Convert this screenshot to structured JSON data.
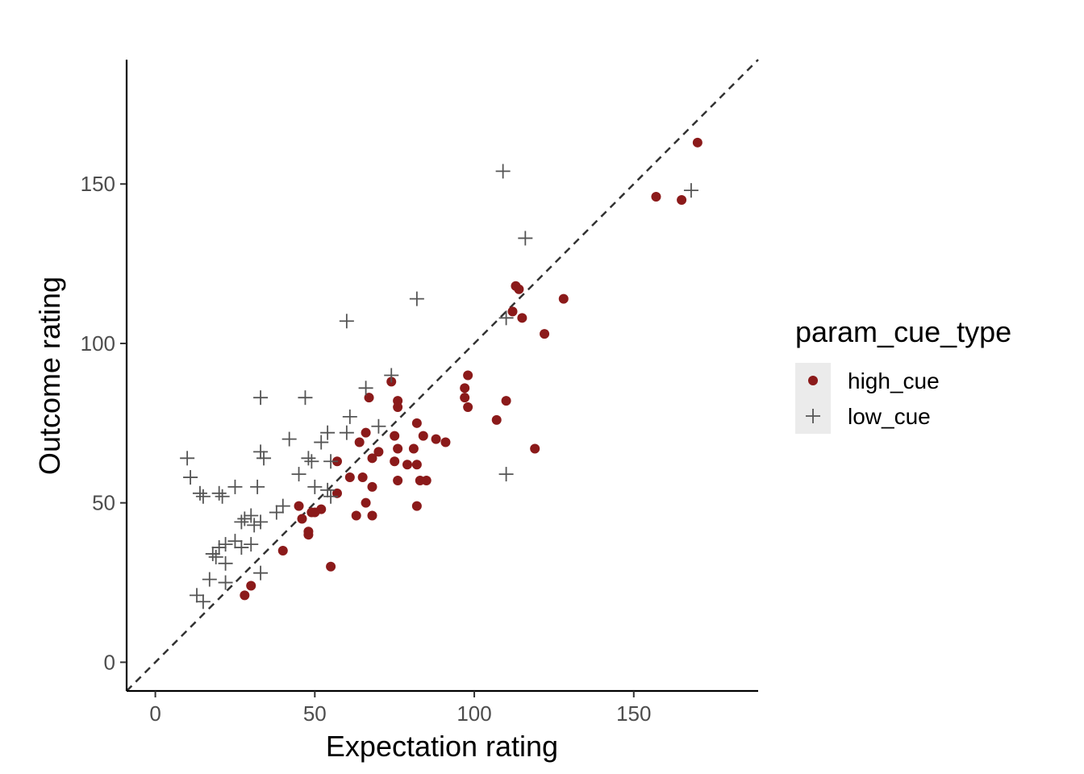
{
  "chart_data": {
    "type": "scatter",
    "title": "",
    "xlabel": "Expectation rating",
    "ylabel": "Outcome rating",
    "xlim": [
      -9,
      189
    ],
    "ylim": [
      -9,
      189
    ],
    "x_ticks": [
      0,
      50,
      100,
      150
    ],
    "y_ticks": [
      0,
      50,
      100,
      150
    ],
    "x_tick_labels": [
      "0",
      "50",
      "100",
      "150"
    ],
    "y_tick_labels": [
      "0",
      "50",
      "100",
      "150"
    ],
    "grid": false,
    "reference_line": {
      "type": "identity",
      "style": "dashed",
      "color": "#333333"
    },
    "legend": {
      "title": "param_cue_type",
      "position": "right",
      "entries": [
        {
          "label": "high_cue",
          "shape": "circle",
          "color": "#8b1a1a"
        },
        {
          "label": "low_cue",
          "shape": "plus",
          "color": "#555555"
        }
      ]
    },
    "series": [
      {
        "name": "high_cue",
        "shape": "circle",
        "color": "#8b1a1a",
        "points": [
          [
            170,
            163
          ],
          [
            157,
            146
          ],
          [
            165,
            145
          ],
          [
            128,
            114
          ],
          [
            113,
            118
          ],
          [
            114,
            117
          ],
          [
            112,
            110
          ],
          [
            115,
            108
          ],
          [
            122,
            103
          ],
          [
            98,
            90
          ],
          [
            97,
            86
          ],
          [
            97,
            83
          ],
          [
            110,
            82
          ],
          [
            98,
            80
          ],
          [
            107,
            76
          ],
          [
            119,
            67
          ],
          [
            74,
            88
          ],
          [
            76,
            82
          ],
          [
            76,
            80
          ],
          [
            67,
            83
          ],
          [
            82,
            75
          ],
          [
            75,
            71
          ],
          [
            84,
            71
          ],
          [
            88,
            70
          ],
          [
            91,
            69
          ],
          [
            76,
            67
          ],
          [
            81,
            67
          ],
          [
            75,
            63
          ],
          [
            79,
            62
          ],
          [
            82,
            62
          ],
          [
            83,
            57
          ],
          [
            85,
            57
          ],
          [
            76,
            57
          ],
          [
            64,
            69
          ],
          [
            66,
            72
          ],
          [
            70,
            66
          ],
          [
            68,
            64
          ],
          [
            57,
            63
          ],
          [
            61,
            58
          ],
          [
            65,
            58
          ],
          [
            68,
            55
          ],
          [
            57,
            53
          ],
          [
            66,
            50
          ],
          [
            82,
            49
          ],
          [
            63,
            46
          ],
          [
            68,
            46
          ],
          [
            45,
            49
          ],
          [
            52,
            48
          ],
          [
            50,
            47
          ],
          [
            49,
            47
          ],
          [
            46,
            45
          ],
          [
            48,
            41
          ],
          [
            48,
            40
          ],
          [
            40,
            35
          ],
          [
            55,
            30
          ],
          [
            30,
            24
          ],
          [
            28,
            21
          ]
        ]
      },
      {
        "name": "low_cue",
        "shape": "plus",
        "color": "#555555",
        "points": [
          [
            109,
            154
          ],
          [
            168,
            148
          ],
          [
            116,
            133
          ],
          [
            82,
            114
          ],
          [
            60,
            107
          ],
          [
            110,
            108
          ],
          [
            74,
            90
          ],
          [
            66,
            86
          ],
          [
            33,
            83
          ],
          [
            47,
            83
          ],
          [
            61,
            77
          ],
          [
            70,
            74
          ],
          [
            54,
            72
          ],
          [
            60,
            72
          ],
          [
            52,
            69
          ],
          [
            42,
            70
          ],
          [
            33,
            66
          ],
          [
            34,
            64
          ],
          [
            10,
            64
          ],
          [
            48,
            64
          ],
          [
            49,
            63
          ],
          [
            55,
            63
          ],
          [
            45,
            59
          ],
          [
            11,
            58
          ],
          [
            110,
            59
          ],
          [
            14,
            53
          ],
          [
            15,
            52
          ],
          [
            20,
            53
          ],
          [
            21,
            52
          ],
          [
            25,
            55
          ],
          [
            32,
            55
          ],
          [
            50,
            55
          ],
          [
            54,
            54
          ],
          [
            55,
            52
          ],
          [
            40,
            49
          ],
          [
            38,
            47
          ],
          [
            30,
            46
          ],
          [
            28,
            45
          ],
          [
            33,
            44
          ],
          [
            31,
            43
          ],
          [
            27,
            44
          ],
          [
            25,
            38
          ],
          [
            22,
            37
          ],
          [
            20,
            36
          ],
          [
            27,
            36
          ],
          [
            18,
            34
          ],
          [
            19,
            33
          ],
          [
            30,
            37
          ],
          [
            22,
            31
          ],
          [
            33,
            28
          ],
          [
            17,
            26
          ],
          [
            22,
            25
          ],
          [
            13,
            21
          ],
          [
            15,
            19
          ]
        ]
      }
    ]
  }
}
